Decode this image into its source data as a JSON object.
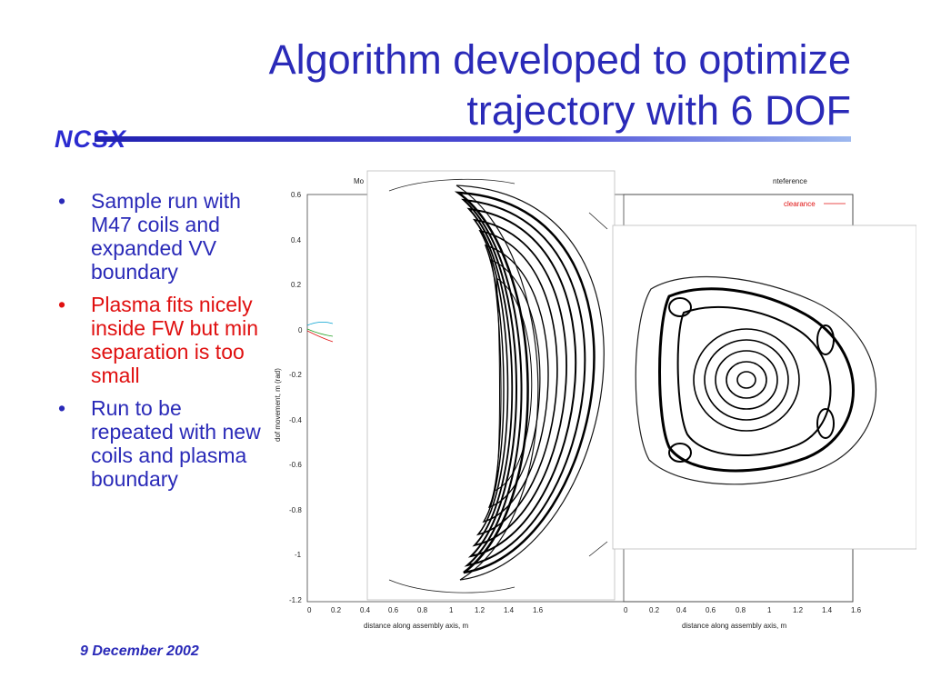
{
  "slide": {
    "title_line1": "Algorithm developed to optimize",
    "title_line2": "trajectory with 6 DOF",
    "logo": "NCSX",
    "date": "9 December 2002",
    "bullets": [
      {
        "text": "Sample run with M47 coils and expanded VV boundary",
        "color": "#2a2ab8"
      },
      {
        "text": "Plasma fits nicely inside FW but min separation is too small",
        "color": "#e01010"
      },
      {
        "text": "Run to be repeated with new coils and plasma boundary",
        "color": "#2a2ab8"
      }
    ]
  },
  "figure": {
    "left_plot": {
      "title_fragment": "Mo",
      "ylabel": "dof movement, m (rad)",
      "xlabel": "distance along assembly axis, m",
      "yticks": [
        "0.6",
        "0.4",
        "0.2",
        "0",
        "-0.2",
        "-0.4",
        "-0.6",
        "-0.8",
        "-1",
        "-1.2"
      ],
      "xticks": [
        "0",
        "0.2",
        "0.4",
        "0.6",
        "0.8",
        "1",
        "1.2",
        "1.4",
        "1.6"
      ]
    },
    "right_plot": {
      "title_fragment": "nteference",
      "legend_label": "clearance",
      "legend_color": "#e01010",
      "xlabel": "distance along assembly axis, m",
      "xticks": [
        "0",
        "0.2",
        "0.4",
        "0.6",
        "0.8",
        "1",
        "1.2",
        "1.4",
        "1.6"
      ]
    }
  }
}
